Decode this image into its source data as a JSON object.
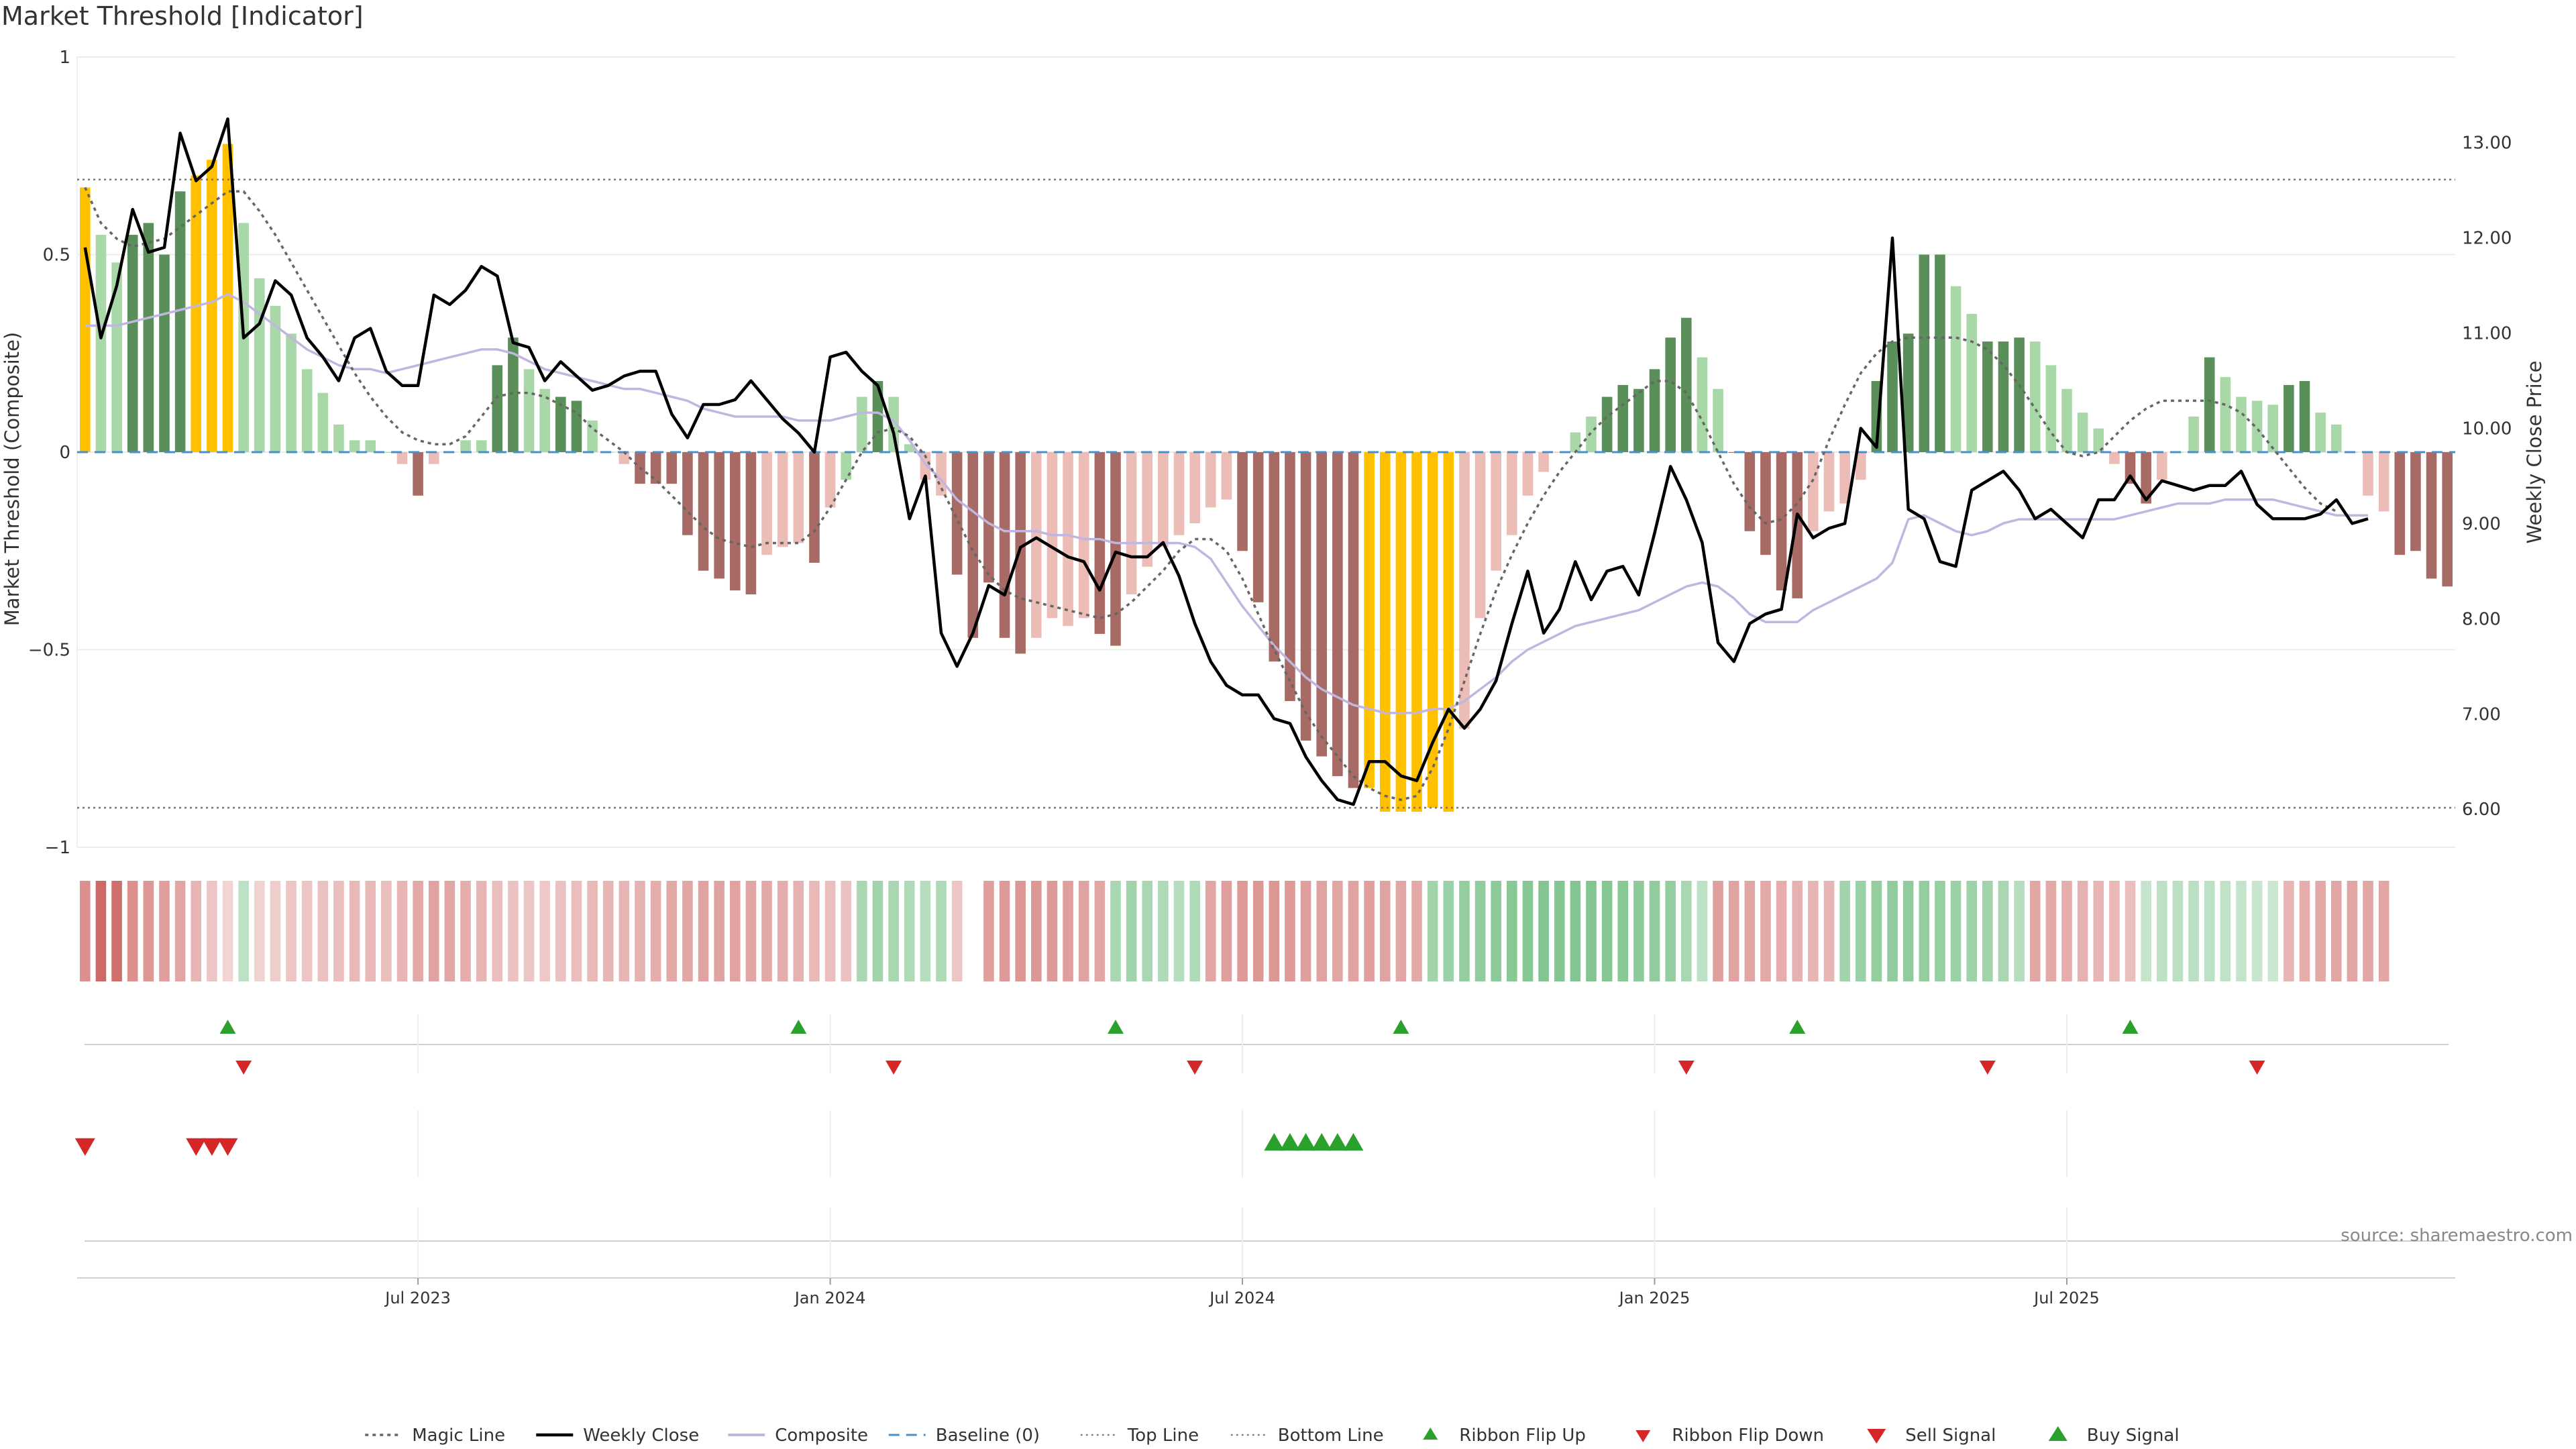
{
  "title": "Market Threshold [Indicator]",
  "source": "source: sharemaestro.com",
  "colors": {
    "bar_dark_green": "#5a8f5a",
    "bar_light_green": "#a8d8a8",
    "bar_dark_red": "#a86a64",
    "bar_light_red": "#ecbcb6",
    "bar_yellow": "#ffc000",
    "weekly_close": "#000000",
    "composite": "#c0b6e0",
    "magic_line": "#666666",
    "baseline": "#4a90c8",
    "ribbon_up": "#2ca02c",
    "ribbon_down": "#d62728"
  },
  "chart_data": {
    "type": "bar",
    "ylabel": "Market Threshold (Composite)",
    "y2label": "Weekly Close Price",
    "ylim": [
      -1,
      1
    ],
    "y2lim": [
      5.6,
      13.9
    ],
    "yticks": [
      {
        "v": 1,
        "t": "1"
      },
      {
        "v": 0.5,
        "t": "0.5"
      },
      {
        "v": 0,
        "t": "0"
      },
      {
        "v": -0.5,
        "t": "−0.5"
      },
      {
        "v": -1,
        "t": "−1"
      }
    ],
    "y2ticks": [
      {
        "v": 6,
        "t": "6.00"
      },
      {
        "v": 7,
        "t": "7.00"
      },
      {
        "v": 8,
        "t": "8.00"
      },
      {
        "v": 9,
        "t": "9.00"
      },
      {
        "v": 10,
        "t": "10.00"
      },
      {
        "v": 11,
        "t": "11.00"
      },
      {
        "v": 12,
        "t": "12.00"
      },
      {
        "v": 13,
        "t": "13.00"
      }
    ],
    "xticks": [
      {
        "week": 21,
        "label": "Jul 2023"
      },
      {
        "week": 47,
        "label": "Jan 2024"
      },
      {
        "week": 73,
        "label": "Jul 2024"
      },
      {
        "week": 99,
        "label": "Jan 2025"
      },
      {
        "week": 125,
        "label": "Jul 2025"
      }
    ],
    "top_line": 0.69,
    "bottom_line": -0.9,
    "bars": [
      0.67,
      0.55,
      0.48,
      0.55,
      0.58,
      0.5,
      0.66,
      0.7,
      0.74,
      0.78,
      0.58,
      0.44,
      0.37,
      0.3,
      0.21,
      0.15,
      0.07,
      0.03,
      0.03,
      0,
      -0.03,
      -0.11,
      -0.03,
      0,
      0.03,
      0.03,
      0.22,
      0.29,
      0.21,
      0.16,
      0.14,
      0.13,
      0.08,
      0,
      -0.03,
      -0.08,
      -0.08,
      -0.08,
      -0.21,
      -0.3,
      -0.32,
      -0.35,
      -0.36,
      -0.26,
      -0.24,
      -0.23,
      -0.28,
      -0.14,
      -0.07,
      0.14,
      0.18,
      0.14,
      0.02,
      -0.07,
      -0.11,
      -0.31,
      -0.47,
      -0.33,
      -0.47,
      -0.51,
      -0.47,
      -0.42,
      -0.44,
      -0.42,
      -0.46,
      -0.49,
      -0.36,
      -0.29,
      -0.24,
      -0.21,
      -0.18,
      -0.14,
      -0.12,
      -0.25,
      -0.38,
      -0.53,
      -0.63,
      -0.73,
      -0.77,
      -0.82,
      -0.85,
      -0.85,
      -0.91,
      -0.91,
      -0.91,
      -0.9,
      -0.91,
      -0.7,
      -0.42,
      -0.3,
      -0.21,
      -0.11,
      -0.05,
      0,
      0.05,
      0.09,
      0.14,
      0.17,
      0.16,
      0.21,
      0.29,
      0.34,
      0.24,
      0.16,
      0,
      -0.2,
      -0.26,
      -0.35,
      -0.37,
      -0.2,
      -0.15,
      -0.13,
      -0.07,
      0.18,
      0.28,
      0.3,
      0.5,
      0.5,
      0.42,
      0.35,
      0.28,
      0.28,
      0.29,
      0.28,
      0.22,
      0.16,
      0.1,
      0.06,
      -0.03,
      -0.08,
      -0.13,
      -0.07,
      0,
      0.09,
      0.24,
      0.19,
      0.14,
      0.13,
      0.12,
      0.17,
      0.18,
      0.1,
      0.07,
      0,
      -0.11,
      -0.15,
      -0.26,
      -0.25,
      -0.32,
      -0.34
    ],
    "bar_colors": [
      "Y",
      "LG",
      "LG",
      "DG",
      "DG",
      "DG",
      "DG",
      "Y",
      "Y",
      "Y",
      "LG",
      "LG",
      "LG",
      "LG",
      "LG",
      "LG",
      "LG",
      "LG",
      "LG",
      "LG",
      "LR",
      "DR",
      "LR",
      "LG",
      "LG",
      "LG",
      "DG",
      "DG",
      "LG",
      "LG",
      "DG",
      "DG",
      "LG",
      "LG",
      "LR",
      "DR",
      "DR",
      "DR",
      "DR",
      "DR",
      "DR",
      "DR",
      "DR",
      "LR",
      "LR",
      "LR",
      "DR",
      "LR",
      "LG",
      "LG",
      "DG",
      "LG",
      "LG",
      "LR",
      "LR",
      "DR",
      "DR",
      "DR",
      "DR",
      "DR",
      "LR",
      "LR",
      "LR",
      "LR",
      "DR",
      "DR",
      "LR",
      "LR",
      "LR",
      "LR",
      "LR",
      "LR",
      "LR",
      "DR",
      "DR",
      "DR",
      "DR",
      "DR",
      "DR",
      "DR",
      "DR",
      "Y",
      "Y",
      "Y",
      "Y",
      "Y",
      "Y",
      "LR",
      "LR",
      "LR",
      "LR",
      "LR",
      "LR",
      "LR",
      "LG",
      "LG",
      "DG",
      "DG",
      "DG",
      "DG",
      "DG",
      "DG",
      "LG",
      "LG",
      "DR",
      "DR",
      "DR",
      "DR",
      "DR",
      "LR",
      "LR",
      "LR",
      "LR",
      "DG",
      "DG",
      "DG",
      "DG",
      "DG",
      "LG",
      "LG",
      "DG",
      "DG",
      "DG",
      "LG",
      "LG",
      "LG",
      "LG",
      "LG",
      "LR",
      "DR",
      "DR",
      "LR",
      "LG",
      "LG",
      "DG",
      "LG",
      "LG",
      "LG",
      "LG",
      "DG",
      "DG",
      "LG",
      "LG",
      "LG",
      "LR",
      "LR",
      "DR",
      "DR",
      "DR",
      "DR"
    ],
    "weekly_close": [
      11.9,
      10.95,
      11.5,
      12.3,
      11.85,
      11.9,
      13.1,
      12.6,
      12.75,
      13.25,
      10.95,
      11.1,
      11.55,
      11.4,
      10.95,
      10.75,
      10.5,
      10.95,
      11.05,
      10.6,
      10.45,
      10.45,
      11.4,
      11.3,
      11.45,
      11.7,
      11.6,
      10.9,
      10.85,
      10.5,
      10.7,
      10.55,
      10.4,
      10.45,
      10.55,
      10.6,
      10.6,
      10.15,
      9.9,
      10.25,
      10.25,
      10.3,
      10.5,
      10.3,
      10.1,
      9.95,
      9.75,
      10.75,
      10.8,
      10.6,
      10.45,
      9.95,
      9.05,
      9.5,
      7.85,
      7.5,
      7.85,
      8.35,
      8.25,
      8.75,
      8.85,
      8.75,
      8.65,
      8.6,
      8.3,
      8.7,
      8.65,
      8.65,
      8.8,
      8.45,
      7.95,
      7.55,
      7.3,
      7.2,
      7.2,
      6.95,
      6.9,
      6.55,
      6.3,
      6.1,
      6.05,
      6.5,
      6.5,
      6.35,
      6.3,
      6.7,
      7.05,
      6.85,
      7.05,
      7.35,
      7.95,
      8.5,
      7.85,
      8.1,
      8.6,
      8.2,
      8.5,
      8.55,
      8.25,
      8.9,
      9.6,
      9.25,
      8.8,
      7.75,
      7.55,
      7.95,
      8.05,
      8.1,
      9.1,
      8.85,
      8.95,
      9.0,
      10.0,
      9.8,
      12.0,
      9.15,
      9.05,
      8.6,
      8.55,
      9.35,
      9.45,
      9.55,
      9.35,
      9.05,
      9.15,
      9.0,
      8.85,
      9.25,
      9.25,
      9.5,
      9.25,
      9.45,
      9.4,
      9.35,
      9.4,
      9.4,
      9.55,
      9.2,
      9.05,
      9.05,
      9.05,
      9.1,
      9.25,
      9.0,
      9.05
    ],
    "composite": [
      0.32,
      0.32,
      0.32,
      0.33,
      0.34,
      0.35,
      0.36,
      0.37,
      0.38,
      0.4,
      0.38,
      0.35,
      0.32,
      0.29,
      0.26,
      0.24,
      0.22,
      0.21,
      0.21,
      0.2,
      0.21,
      0.22,
      0.23,
      0.24,
      0.25,
      0.26,
      0.26,
      0.25,
      0.23,
      0.21,
      0.2,
      0.19,
      0.18,
      0.17,
      0.16,
      0.16,
      0.15,
      0.14,
      0.13,
      0.11,
      0.1,
      0.09,
      0.09,
      0.09,
      0.09,
      0.08,
      0.08,
      0.08,
      0.09,
      0.1,
      0.1,
      0.08,
      0.03,
      -0.03,
      -0.07,
      -0.12,
      -0.15,
      -0.18,
      -0.2,
      -0.2,
      -0.2,
      -0.21,
      -0.21,
      -0.22,
      -0.22,
      -0.23,
      -0.23,
      -0.23,
      -0.23,
      -0.23,
      -0.24,
      -0.27,
      -0.33,
      -0.39,
      -0.44,
      -0.49,
      -0.53,
      -0.57,
      -0.6,
      -0.62,
      -0.64,
      -0.65,
      -0.66,
      -0.66,
      -0.66,
      -0.65,
      -0.65,
      -0.63,
      -0.6,
      -0.57,
      -0.53,
      -0.5,
      -0.48,
      -0.46,
      -0.44,
      -0.43,
      -0.42,
      -0.41,
      -0.4,
      -0.38,
      -0.36,
      -0.34,
      -0.33,
      -0.34,
      -0.37,
      -0.41,
      -0.43,
      -0.43,
      -0.43,
      -0.4,
      -0.38,
      -0.36,
      -0.34,
      -0.32,
      -0.28,
      -0.17,
      -0.16,
      -0.18,
      -0.2,
      -0.21,
      -0.2,
      -0.18,
      -0.17,
      -0.17,
      -0.17,
      -0.17,
      -0.17,
      -0.17,
      -0.17,
      -0.16,
      -0.15,
      -0.14,
      -0.13,
      -0.13,
      -0.13,
      -0.12,
      -0.12,
      -0.12,
      -0.12,
      -0.13,
      -0.14,
      -0.15,
      -0.16,
      -0.16,
      -0.16
    ],
    "magic_line": [
      0.67,
      0.58,
      0.54,
      0.52,
      0.53,
      0.54,
      0.57,
      0.6,
      0.63,
      0.66,
      0.66,
      0.61,
      0.55,
      0.48,
      0.41,
      0.34,
      0.27,
      0.2,
      0.14,
      0.09,
      0.05,
      0.03,
      0.02,
      0.02,
      0.04,
      0.09,
      0.14,
      0.15,
      0.15,
      0.14,
      0.12,
      0.1,
      0.06,
      0.03,
      0.0,
      -0.04,
      -0.07,
      -0.11,
      -0.15,
      -0.19,
      -0.22,
      -0.23,
      -0.24,
      -0.23,
      -0.23,
      -0.23,
      -0.2,
      -0.14,
      -0.07,
      0.0,
      0.05,
      0.06,
      0.04,
      -0.01,
      -0.09,
      -0.17,
      -0.25,
      -0.31,
      -0.35,
      -0.37,
      -0.38,
      -0.39,
      -0.4,
      -0.41,
      -0.42,
      -0.41,
      -0.38,
      -0.34,
      -0.3,
      -0.25,
      -0.22,
      -0.22,
      -0.25,
      -0.32,
      -0.41,
      -0.5,
      -0.58,
      -0.66,
      -0.72,
      -0.77,
      -0.82,
      -0.85,
      -0.87,
      -0.88,
      -0.87,
      -0.8,
      -0.7,
      -0.58,
      -0.46,
      -0.35,
      -0.26,
      -0.18,
      -0.11,
      -0.05,
      0.0,
      0.05,
      0.09,
      0.12,
      0.15,
      0.18,
      0.18,
      0.15,
      0.08,
      0.0,
      -0.08,
      -0.14,
      -0.18,
      -0.17,
      -0.13,
      -0.07,
      0.03,
      0.12,
      0.2,
      0.25,
      0.28,
      0.29,
      0.29,
      0.29,
      0.29,
      0.28,
      0.26,
      0.22,
      0.17,
      0.11,
      0.05,
      0.0,
      -0.01,
      0.0,
      0.04,
      0.08,
      0.11,
      0.13,
      0.13,
      0.13,
      0.13,
      0.12,
      0.1,
      0.06,
      0.01,
      -0.04,
      -0.09,
      -0.13,
      -0.15
    ],
    "ribbon": [
      -0.55,
      -0.8,
      -0.75,
      -0.55,
      -0.5,
      -0.45,
      -0.4,
      -0.3,
      -0.2,
      -0.1,
      0.3,
      -0.12,
      -0.15,
      -0.2,
      -0.2,
      -0.22,
      -0.25,
      -0.28,
      -0.28,
      -0.25,
      -0.3,
      -0.38,
      -0.42,
      -0.4,
      -0.35,
      -0.3,
      -0.25,
      -0.22,
      -0.2,
      -0.18,
      -0.22,
      -0.25,
      -0.28,
      -0.3,
      -0.3,
      -0.32,
      -0.35,
      -0.38,
      -0.4,
      -0.42,
      -0.42,
      -0.42,
      -0.4,
      -0.38,
      -0.35,
      -0.32,
      -0.28,
      -0.25,
      -0.22,
      0.45,
      0.5,
      0.45,
      0.4,
      0.35,
      0.4,
      -0.2,
      null,
      -0.45,
      -0.48,
      -0.5,
      -0.5,
      -0.48,
      -0.45,
      -0.42,
      -0.4,
      0.45,
      0.5,
      0.45,
      0.4,
      0.35,
      0.4,
      -0.4,
      -0.45,
      -0.48,
      -0.5,
      -0.5,
      -0.48,
      -0.45,
      -0.42,
      -0.4,
      -0.42,
      -0.45,
      -0.42,
      -0.4,
      -0.38,
      0.5,
      0.55,
      0.6,
      0.62,
      0.65,
      0.68,
      0.7,
      0.72,
      0.72,
      0.72,
      0.72,
      0.7,
      0.68,
      0.65,
      0.62,
      0.6,
      0.45,
      0.3,
      -0.45,
      -0.42,
      -0.4,
      -0.38,
      -0.35,
      -0.32,
      -0.3,
      -0.3,
      0.5,
      0.55,
      0.6,
      0.62,
      0.62,
      0.6,
      0.58,
      0.55,
      0.52,
      0.5,
      0.45,
      0.35,
      -0.4,
      -0.38,
      -0.35,
      -0.32,
      -0.3,
      -0.28,
      -0.25,
      0.25,
      0.3,
      0.32,
      0.32,
      0.3,
      0.28,
      0.25,
      0.22,
      0.2,
      -0.3,
      -0.35,
      -0.38,
      -0.4,
      -0.4,
      -0.4,
      -0.4
    ],
    "ribbon_flip_up_weeks": [
      9,
      45,
      65,
      83,
      108,
      129
    ],
    "ribbon_flip_down_weeks": [
      10,
      51,
      70,
      101,
      120,
      137
    ],
    "sell_signal_weeks": [
      0,
      7,
      8,
      9
    ],
    "buy_signal_weeks": [
      75,
      76,
      77,
      78,
      79,
      80
    ],
    "legend": [
      {
        "label": "Magic Line",
        "kind": "dotted-line"
      },
      {
        "label": "Weekly Close",
        "kind": "solid-line"
      },
      {
        "label": "Composite",
        "kind": "composite-line"
      },
      {
        "label": "Baseline (0)",
        "kind": "dashed-line"
      },
      {
        "label": "Top Line",
        "kind": "thin-dotted-line"
      },
      {
        "label": "Bottom Line",
        "kind": "thin-dotted-line"
      },
      {
        "label": "Ribbon Flip Up",
        "kind": "up-triangle"
      },
      {
        "label": "Ribbon Flip Down",
        "kind": "down-triangle"
      },
      {
        "label": "Sell Signal",
        "kind": "sell-triangle"
      },
      {
        "label": "Buy Signal",
        "kind": "buy-triangle"
      }
    ]
  }
}
